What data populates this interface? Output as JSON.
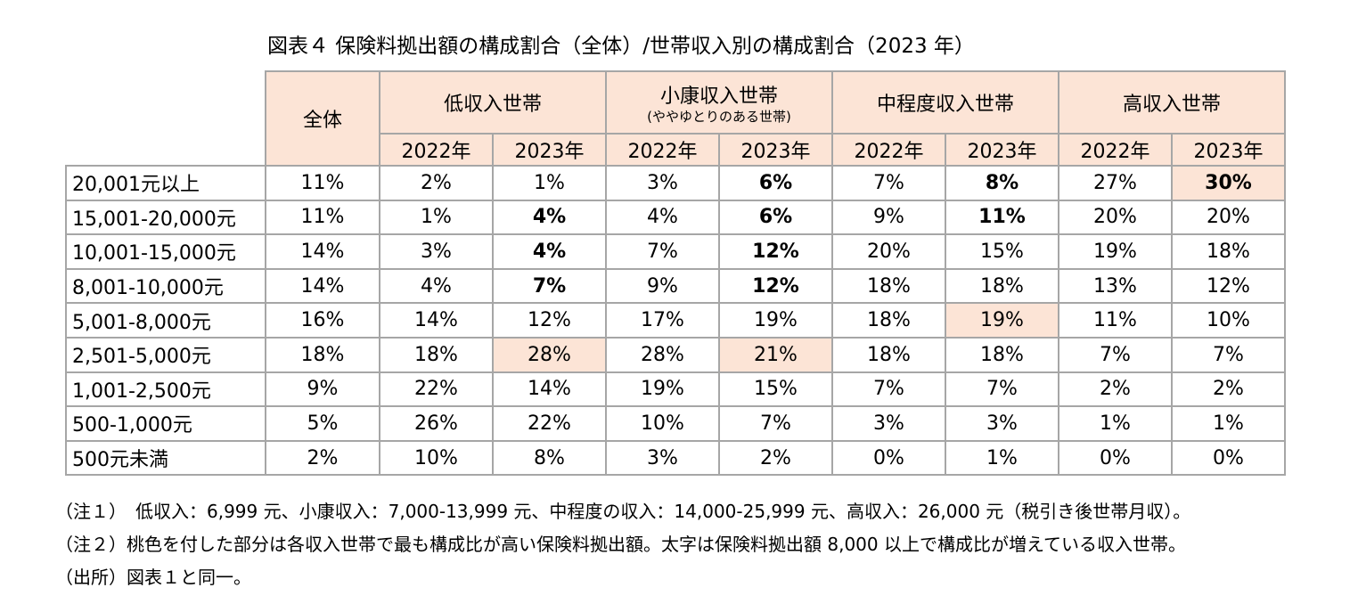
{
  "chart_data": {
    "type": "table",
    "title": "図表４ 保険料拠出額の構成割合（全体）/世帯収入別の構成割合（2023 年）",
    "groups": [
      {
        "label": "全体",
        "sublabel": ""
      },
      {
        "label": "低収入世帯",
        "sublabel": ""
      },
      {
        "label": "小康収入世帯",
        "sublabel": "(ややゆとりのある世帯)"
      },
      {
        "label": "中程度収入世帯",
        "sublabel": ""
      },
      {
        "label": "高収入世帯",
        "sublabel": ""
      }
    ],
    "years": [
      "2022年",
      "2023年",
      "2022年",
      "2023年",
      "2022年",
      "2023年",
      "2022年",
      "2023年"
    ],
    "rows": [
      {
        "label": "20,001元以上",
        "values": [
          "11%",
          "2%",
          "1%",
          "3%",
          "6%",
          "7%",
          "8%",
          "27%",
          "30%"
        ]
      },
      {
        "label": "15,001-20,000元",
        "values": [
          "11%",
          "1%",
          "4%",
          "4%",
          "6%",
          "9%",
          "11%",
          "20%",
          "20%"
        ]
      },
      {
        "label": "10,001-15,000元",
        "values": [
          "14%",
          "3%",
          "4%",
          "7%",
          "12%",
          "20%",
          "15%",
          "19%",
          "18%"
        ]
      },
      {
        "label": "8,001-10,000元",
        "values": [
          "14%",
          "4%",
          "7%",
          "9%",
          "12%",
          "18%",
          "18%",
          "13%",
          "12%"
        ]
      },
      {
        "label": "5,001-8,000元",
        "values": [
          "16%",
          "14%",
          "12%",
          "17%",
          "19%",
          "18%",
          "19%",
          "11%",
          "10%"
        ]
      },
      {
        "label": "2,501-5,000元",
        "values": [
          "18%",
          "18%",
          "28%",
          "28%",
          "21%",
          "18%",
          "18%",
          "7%",
          "7%"
        ]
      },
      {
        "label": "1,001-2,500元",
        "values": [
          "9%",
          "22%",
          "14%",
          "19%",
          "15%",
          "7%",
          "7%",
          "2%",
          "2%"
        ]
      },
      {
        "label": "500-1,000元",
        "values": [
          "5%",
          "26%",
          "22%",
          "10%",
          "7%",
          "3%",
          "3%",
          "1%",
          "1%"
        ]
      },
      {
        "label": "500元未満",
        "values": [
          "2%",
          "10%",
          "8%",
          "3%",
          "2%",
          "0%",
          "1%",
          "0%",
          "0%"
        ]
      }
    ],
    "highlight_cells": [
      [
        0,
        8
      ],
      [
        4,
        6
      ],
      [
        5,
        2
      ],
      [
        5,
        4
      ]
    ],
    "bold_cells": [
      [
        0,
        4
      ],
      [
        0,
        6
      ],
      [
        0,
        8
      ],
      [
        1,
        2
      ],
      [
        1,
        4
      ],
      [
        1,
        6
      ],
      [
        2,
        2
      ],
      [
        2,
        4
      ],
      [
        3,
        2
      ],
      [
        3,
        4
      ]
    ],
    "colors": {
      "highlight": "#fce4d6",
      "border": "#a6a6a6"
    }
  },
  "notes": [
    "（注１）　低収入：6,999 元、小康収入：7,000-13,999 元、中程度の収入：14,000-25,999 元、高収入：26,000 元（税引き後世帯月収）。",
    "（注２）桃色を付した部分は各収入世帯で最も構成比が高い保険料拠出額。太字は保険料拠出額 8,000 以上で構成比が増えている収入世帯。",
    "（出所）図表１と同一。"
  ]
}
